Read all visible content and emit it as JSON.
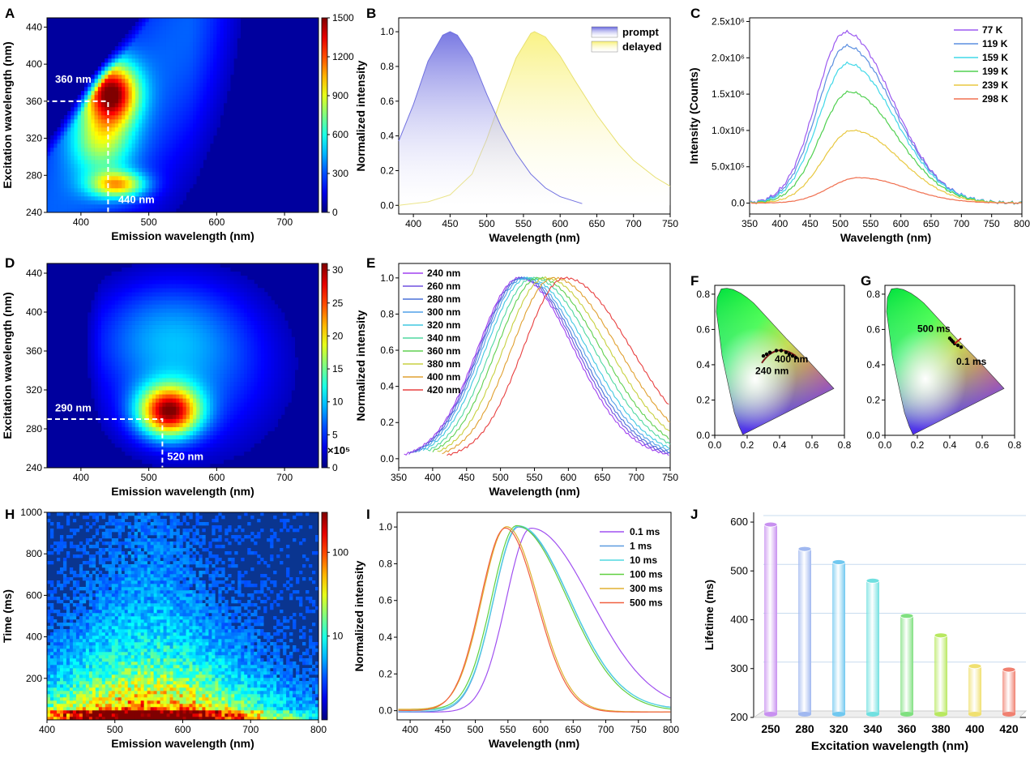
{
  "chart_data": [
    {
      "panel": "A",
      "type": "heatmap",
      "xlabel": "Emission wavelength (nm)",
      "ylabel": "Excitation wavelength (nm)",
      "xlim": [
        350,
        750
      ],
      "ylim": [
        240,
        450
      ],
      "xticks": [
        400,
        500,
        600,
        700
      ],
      "yticks": [
        240,
        280,
        320,
        360,
        400,
        440
      ],
      "colorbar": {
        "min": 0,
        "max": 1500,
        "ticks": [
          0,
          300,
          600,
          900,
          1200,
          1500
        ]
      },
      "peaks": [
        {
          "em": 445,
          "ex": 370,
          "level": 1500
        },
        {
          "em": 455,
          "ex": 270,
          "level": 950
        }
      ],
      "annotations": [
        {
          "text": "360 nm",
          "em": 440,
          "ex": 360
        },
        {
          "text": "440 nm",
          "em": 440,
          "ex": 240
        }
      ]
    },
    {
      "panel": "B",
      "type": "area",
      "xlabel": "Wavelength (nm)",
      "ylabel": "Normalized intensity",
      "xlim": [
        380,
        750
      ],
      "ylim": [
        -0.05,
        1.08
      ],
      "xticks": [
        400,
        450,
        500,
        550,
        600,
        650,
        700,
        750
      ],
      "yticks": [
        0.0,
        0.2,
        0.4,
        0.6,
        0.8,
        1.0
      ],
      "legend_position": "top-right",
      "series": [
        {
          "name": "prompt",
          "color": "#7070e0",
          "x": [
            380,
            400,
            420,
            440,
            450,
            460,
            480,
            500,
            520,
            540,
            560,
            580,
            600,
            630
          ],
          "y": [
            0.37,
            0.58,
            0.83,
            0.98,
            1.0,
            0.98,
            0.85,
            0.64,
            0.45,
            0.3,
            0.18,
            0.1,
            0.05,
            0.01
          ]
        },
        {
          "name": "delayed",
          "color": "#e8e070",
          "x": [
            380,
            420,
            450,
            480,
            500,
            520,
            540,
            560,
            565,
            580,
            600,
            620,
            650,
            680,
            700,
            730,
            750
          ],
          "y": [
            0.0,
            0.02,
            0.06,
            0.18,
            0.38,
            0.62,
            0.85,
            0.99,
            1.0,
            0.97,
            0.86,
            0.72,
            0.52,
            0.35,
            0.26,
            0.16,
            0.11
          ]
        }
      ]
    },
    {
      "panel": "C",
      "type": "line",
      "xlabel": "Wavelength (nm)",
      "ylabel": "Intensity (Counts)",
      "xlim": [
        350,
        800
      ],
      "ylim": [
        -150000,
        2550000
      ],
      "xticks": [
        350,
        400,
        450,
        500,
        550,
        600,
        650,
        700,
        750,
        800
      ],
      "yticks": [
        0,
        500000,
        1000000,
        1500000,
        2000000,
        2500000
      ],
      "ytick_labels": [
        "0.0",
        "5.0x10⁵",
        "1.0x10⁶",
        "1.5x10⁶",
        "2.0x10⁶",
        "2.5x10⁶"
      ],
      "legend_position": "top-right",
      "series": [
        {
          "name": "77 K",
          "color": "#9b59f0",
          "peak": 2350000,
          "center": 508
        },
        {
          "name": "119 K",
          "color": "#5b8fe0",
          "peak": 2160000,
          "center": 510
        },
        {
          "name": "159 K",
          "color": "#40d8e8",
          "peak": 1920000,
          "center": 512
        },
        {
          "name": "199 K",
          "color": "#50d050",
          "peak": 1530000,
          "center": 515
        },
        {
          "name": "239 K",
          "color": "#e8c840",
          "peak": 1000000,
          "center": 520
        },
        {
          "name": "298 K",
          "color": "#f07050",
          "peak": 350000,
          "center": 530
        }
      ]
    },
    {
      "panel": "D",
      "type": "heatmap",
      "xlabel": "Emission wavelength (nm)",
      "ylabel": "Excitation wavelength (nm)",
      "xlim": [
        350,
        750
      ],
      "ylim": [
        240,
        450
      ],
      "xticks": [
        400,
        500,
        600,
        700
      ],
      "yticks": [
        240,
        280,
        320,
        360,
        400,
        440
      ],
      "colorbar": {
        "min": 0,
        "max": 31,
        "ticks": [
          0,
          5,
          10,
          15,
          20,
          25,
          30
        ],
        "unit": "×10⁵"
      },
      "peaks": [
        {
          "em": 530,
          "ex": 295,
          "level": 31
        }
      ],
      "annotations": [
        {
          "text": "290 nm",
          "em": 520,
          "ex": 290
        },
        {
          "text": "520 nm",
          "em": 520,
          "ex": 240
        }
      ]
    },
    {
      "panel": "E",
      "type": "line",
      "xlabel": "Wavelength (nm)",
      "ylabel": "Normalized intensity",
      "xlim": [
        350,
        750
      ],
      "ylim": [
        -0.05,
        1.08
      ],
      "xticks": [
        350,
        400,
        450,
        500,
        550,
        600,
        650,
        700,
        750
      ],
      "yticks": [
        0.0,
        0.2,
        0.4,
        0.6,
        0.8,
        1.0
      ],
      "legend_position": "top-left",
      "series": [
        {
          "name": "240 nm",
          "color": "#a040f0",
          "peak_x": 528
        },
        {
          "name": "260 nm",
          "color": "#7050e0",
          "peak_x": 530
        },
        {
          "name": "280 nm",
          "color": "#4a70d8",
          "peak_x": 532
        },
        {
          "name": "300 nm",
          "color": "#50a0e8",
          "peak_x": 535
        },
        {
          "name": "320 nm",
          "color": "#40c8e0",
          "peak_x": 540
        },
        {
          "name": "340 nm",
          "color": "#50d8a0",
          "peak_x": 548
        },
        {
          "name": "360 nm",
          "color": "#60d050",
          "peak_x": 556
        },
        {
          "name": "380 nm",
          "color": "#c8d040",
          "peak_x": 566
        },
        {
          "name": "400 nm",
          "color": "#e0a030",
          "peak_x": 578
        },
        {
          "name": "420 nm",
          "color": "#e84040",
          "peak_x": 595
        }
      ]
    },
    {
      "panel": "F",
      "type": "scatter",
      "xlim": [
        0,
        0.8
      ],
      "ylim": [
        0,
        0.85
      ],
      "xticks": [
        0.0,
        0.2,
        0.4,
        0.6,
        0.8
      ],
      "yticks": [
        0.0,
        0.2,
        0.4,
        0.6,
        0.8
      ],
      "points": [
        [
          0.3,
          0.45
        ],
        [
          0.32,
          0.46
        ],
        [
          0.34,
          0.47
        ],
        [
          0.38,
          0.48
        ],
        [
          0.41,
          0.48
        ],
        [
          0.44,
          0.47
        ],
        [
          0.46,
          0.46
        ],
        [
          0.48,
          0.45
        ],
        [
          0.5,
          0.44
        ]
      ],
      "labels": [
        {
          "text": "240 nm",
          "x": 0.3,
          "y": 0.42
        },
        {
          "text": "400 nm",
          "x": 0.5,
          "y": 0.44
        }
      ]
    },
    {
      "panel": "G",
      "type": "scatter",
      "xlim": [
        0,
        0.8
      ],
      "ylim": [
        0,
        0.85
      ],
      "xticks": [
        0.0,
        0.2,
        0.4,
        0.6,
        0.8
      ],
      "yticks": [
        0.0,
        0.2,
        0.4,
        0.6,
        0.8
      ],
      "points": [
        [
          0.4,
          0.55
        ],
        [
          0.41,
          0.54
        ],
        [
          0.42,
          0.53
        ],
        [
          0.43,
          0.52
        ],
        [
          0.45,
          0.51
        ],
        [
          0.47,
          0.5
        ]
      ],
      "labels": [
        {
          "text": "500 ms",
          "x": 0.4,
          "y": 0.55
        },
        {
          "text": "0.1 ms",
          "x": 0.47,
          "y": 0.5
        }
      ]
    },
    {
      "panel": "H",
      "type": "heatmap",
      "xlabel": "Emission wavelength (nm)",
      "ylabel": "Time (ms)",
      "xlim": [
        400,
        800
      ],
      "ylim": [
        0,
        1000
      ],
      "xticks": [
        400,
        500,
        600,
        700,
        800
      ],
      "yticks": [
        200,
        400,
        600,
        800,
        1000
      ],
      "colorbar": {
        "scale": "log",
        "ticks": [
          10,
          100
        ]
      }
    },
    {
      "panel": "I",
      "type": "line",
      "xlabel": "Wavelength (nm)",
      "ylabel": "Normalized intensity",
      "xlim": [
        380,
        800
      ],
      "ylim": [
        -0.05,
        1.08
      ],
      "xticks": [
        400,
        450,
        500,
        550,
        600,
        650,
        700,
        750,
        800
      ],
      "yticks": [
        0.0,
        0.2,
        0.4,
        0.6,
        0.8,
        1.0
      ],
      "legend_position": "top-right",
      "series": [
        {
          "name": "0.1 ms",
          "color": "#a050f0",
          "peak_x": 585
        },
        {
          "name": "1 ms",
          "color": "#5b9ae0",
          "peak_x": 566
        },
        {
          "name": "10 ms",
          "color": "#50d8e0",
          "peak_x": 566
        },
        {
          "name": "100 ms",
          "color": "#60d040",
          "peak_x": 563
        },
        {
          "name": "300 ms",
          "color": "#e0b030",
          "peak_x": 548
        },
        {
          "name": "500 ms",
          "color": "#f06040",
          "peak_x": 546
        }
      ]
    },
    {
      "panel": "J",
      "type": "bar",
      "xlabel": "Excitation wavelength (nm)",
      "ylabel": "Lifetime (ms)",
      "ylim": [
        200,
        620
      ],
      "yticks": [
        200,
        300,
        400,
        500,
        600
      ],
      "categories": [
        "250",
        "280",
        "320",
        "340",
        "360",
        "380",
        "400",
        "420"
      ],
      "values": [
        595,
        545,
        518,
        480,
        408,
        368,
        305,
        298
      ],
      "colors": [
        "#c890f0",
        "#a0b8f0",
        "#70c8f0",
        "#70e0e0",
        "#80e080",
        "#b8e860",
        "#f0e070",
        "#f08070"
      ]
    }
  ]
}
